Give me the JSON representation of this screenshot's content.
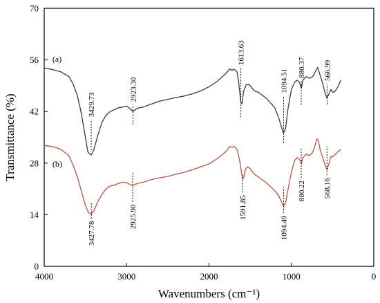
{
  "chart_data": {
    "type": "line",
    "title": "",
    "xlabel": "Wavenumbers (cm⁻¹)",
    "ylabel": "Transmittance (%)",
    "xlim": [
      4000,
      0
    ],
    "ylim": [
      0,
      70
    ],
    "x_ticks": [
      4000,
      3000,
      2000,
      1000,
      0
    ],
    "y_ticks": [
      0,
      14,
      28,
      42,
      56,
      70
    ],
    "grid": false,
    "legend": "none",
    "series": [
      {
        "label": "(a)",
        "color": "#3a3a3a",
        "label_at": [
          3900,
          55.5
        ],
        "points": [
          [
            4000,
            53.8
          ],
          [
            3900,
            53.4
          ],
          [
            3800,
            52.8
          ],
          [
            3700,
            51.5
          ],
          [
            3650,
            49.5
          ],
          [
            3600,
            46.5
          ],
          [
            3550,
            41.5
          ],
          [
            3500,
            35
          ],
          [
            3470,
            31
          ],
          [
            3430,
            30.2
          ],
          [
            3400,
            31.5
          ],
          [
            3350,
            35.5
          ],
          [
            3300,
            39
          ],
          [
            3250,
            41
          ],
          [
            3200,
            42
          ],
          [
            3150,
            42.5
          ],
          [
            3100,
            43
          ],
          [
            3050,
            43.2
          ],
          [
            3000,
            43.5
          ],
          [
            2960,
            42.8
          ],
          [
            2923,
            42
          ],
          [
            2890,
            42.6
          ],
          [
            2850,
            43
          ],
          [
            2800,
            43.2
          ],
          [
            2700,
            44
          ],
          [
            2600,
            44.8
          ],
          [
            2500,
            45.3
          ],
          [
            2400,
            45.8
          ],
          [
            2300,
            46.2
          ],
          [
            2200,
            46.8
          ],
          [
            2100,
            47.6
          ],
          [
            2000,
            48.7
          ],
          [
            1900,
            50.2
          ],
          [
            1800,
            52.2
          ],
          [
            1750,
            53.5
          ],
          [
            1720,
            53.2
          ],
          [
            1700,
            53.5
          ],
          [
            1660,
            52.8
          ],
          [
            1640,
            50
          ],
          [
            1613,
            44.6
          ],
          [
            1600,
            44
          ],
          [
            1580,
            47.5
          ],
          [
            1550,
            49.2
          ],
          [
            1520,
            49.4
          ],
          [
            1500,
            49
          ],
          [
            1450,
            47.6
          ],
          [
            1400,
            47.2
          ],
          [
            1300,
            45.5
          ],
          [
            1200,
            43
          ],
          [
            1150,
            40
          ],
          [
            1110,
            37
          ],
          [
            1094,
            36.2
          ],
          [
            1070,
            37.5
          ],
          [
            1040,
            43
          ],
          [
            1000,
            48
          ],
          [
            960,
            50
          ],
          [
            930,
            50.5
          ],
          [
            900,
            49.8
          ],
          [
            880,
            48.3
          ],
          [
            860,
            50.5
          ],
          [
            820,
            51.5
          ],
          [
            780,
            51
          ],
          [
            740,
            51.5
          ],
          [
            700,
            53.2
          ],
          [
            680,
            54
          ],
          [
            660,
            52.5
          ],
          [
            640,
            51
          ],
          [
            620,
            49.5
          ],
          [
            590,
            47
          ],
          [
            567,
            45.6
          ],
          [
            545,
            46.8
          ],
          [
            520,
            48
          ],
          [
            500,
            47.2
          ],
          [
            470,
            47.5
          ],
          [
            440,
            48.5
          ],
          [
            410,
            50
          ],
          [
            400,
            50.5
          ]
        ]
      },
      {
        "label": "(b)",
        "color": "#c0503c",
        "label_at": [
          3900,
          27
        ],
        "points": [
          [
            4000,
            32.8
          ],
          [
            3900,
            32.5
          ],
          [
            3800,
            31.8
          ],
          [
            3700,
            30
          ],
          [
            3650,
            27.5
          ],
          [
            3600,
            24.5
          ],
          [
            3550,
            20.5
          ],
          [
            3500,
            16.5
          ],
          [
            3460,
            14.5
          ],
          [
            3428,
            14.2
          ],
          [
            3400,
            15
          ],
          [
            3350,
            17.5
          ],
          [
            3300,
            19.5
          ],
          [
            3250,
            21
          ],
          [
            3200,
            21.8
          ],
          [
            3150,
            22
          ],
          [
            3100,
            22.5
          ],
          [
            3050,
            22.8
          ],
          [
            3000,
            22.7
          ],
          [
            2960,
            22.2
          ],
          [
            2926,
            21.9
          ],
          [
            2890,
            22.3
          ],
          [
            2850,
            22.6
          ],
          [
            2800,
            22.8
          ],
          [
            2700,
            23.5
          ],
          [
            2600,
            24
          ],
          [
            2500,
            24.4
          ],
          [
            2400,
            25
          ],
          [
            2300,
            25.5
          ],
          [
            2200,
            26.2
          ],
          [
            2100,
            27
          ],
          [
            2000,
            27.8
          ],
          [
            1900,
            29.2
          ],
          [
            1800,
            31
          ],
          [
            1750,
            32.5
          ],
          [
            1720,
            32.3
          ],
          [
            1690,
            32.5
          ],
          [
            1660,
            31.8
          ],
          [
            1630,
            29
          ],
          [
            1592,
            23.6
          ],
          [
            1575,
            24.5
          ],
          [
            1555,
            26.5
          ],
          [
            1530,
            27
          ],
          [
            1500,
            26.5
          ],
          [
            1450,
            25
          ],
          [
            1400,
            24.2
          ],
          [
            1300,
            22.6
          ],
          [
            1200,
            20.5
          ],
          [
            1150,
            19
          ],
          [
            1110,
            17
          ],
          [
            1094,
            16.3
          ],
          [
            1070,
            17.2
          ],
          [
            1040,
            21
          ],
          [
            1000,
            25.5
          ],
          [
            960,
            28.8
          ],
          [
            930,
            29.5
          ],
          [
            900,
            29
          ],
          [
            880,
            27.8
          ],
          [
            860,
            29.5
          ],
          [
            820,
            30.5
          ],
          [
            780,
            30
          ],
          [
            740,
            31
          ],
          [
            710,
            33
          ],
          [
            690,
            34.6
          ],
          [
            670,
            34
          ],
          [
            650,
            31.5
          ],
          [
            620,
            29.5
          ],
          [
            590,
            27.5
          ],
          [
            568,
            26.2
          ],
          [
            545,
            27.8
          ],
          [
            520,
            29.8
          ],
          [
            500,
            29.7
          ],
          [
            470,
            30.3
          ],
          [
            440,
            31
          ],
          [
            410,
            31.5
          ],
          [
            400,
            31.8
          ]
        ]
      }
    ],
    "annotations": [
      {
        "series": "(a)",
        "text": "3429.73",
        "x": 3429.73,
        "line": [
          31.5,
          39.8
        ],
        "text_from": 40.5
      },
      {
        "series": "(a)",
        "text": "2923.30",
        "x": 2923.3,
        "line": [
          38.5,
          43.8
        ],
        "text_from": 44.6
      },
      {
        "series": "(a)",
        "text": "1613.63",
        "x": 1613.63,
        "line": [
          40.5,
          53.8
        ],
        "text_from": 54.6
      },
      {
        "series": "(a)",
        "text": "1094.51",
        "x": 1094.51,
        "line": [
          33.5,
          46.2
        ],
        "text_from": 47
      },
      {
        "series": "(a)",
        "text": "880.37",
        "x": 880.37,
        "line": [
          43.8,
          50.3
        ],
        "text_from": 51.1
      },
      {
        "series": "(a)",
        "text": "566.99",
        "x": 566.99,
        "line": [
          44,
          49.5
        ],
        "text_from": 50.3
      },
      {
        "series": "(b)",
        "text": "3427.78",
        "x": 3427.78,
        "line": [
          13,
          17.5
        ],
        "text_from": 12.3
      },
      {
        "series": "(b)",
        "text": "2925.90",
        "x": 2925.9,
        "line": [
          17.5,
          25.5
        ],
        "text_from": 16.8
      },
      {
        "series": "(b)",
        "text": "1591.85",
        "x": 1591.85,
        "line": [
          20,
          24.8
        ],
        "text_from": 19.3
      },
      {
        "series": "(b)",
        "text": "1094.49",
        "x": 1094.49,
        "line": [
          14.5,
          21.5
        ],
        "text_from": 13.8
      },
      {
        "series": "(b)",
        "text": "880.22",
        "x": 880.22,
        "line": [
          24,
          32
        ],
        "text_from": 23.3
      },
      {
        "series": "(b)",
        "text": "568.16",
        "x": 568.16,
        "line": [
          24.8,
          32.5
        ],
        "text_from": 24
      }
    ]
  }
}
